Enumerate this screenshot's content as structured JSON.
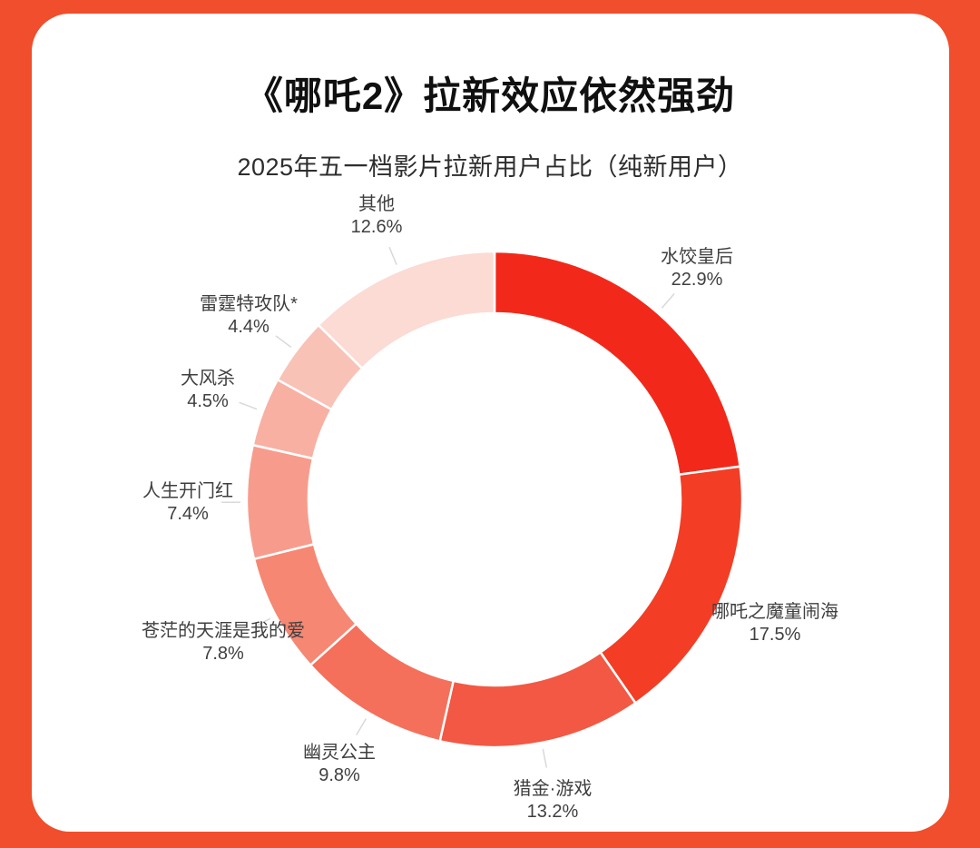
{
  "page": {
    "frame_color": "#F04E2C",
    "card_color": "#FFFFFF",
    "title_color": "#101010",
    "label_color": "#3F3F3F",
    "leader_tick_color": "#D9D9D9"
  },
  "chart_data": {
    "type": "pie",
    "subtype": "donut",
    "title": "《哪吒2》拉新效应依然强劲",
    "subtitle": "2025年五一档影片拉新用户占比（纯新用户）",
    "value_suffix": "%",
    "start_angle": "12-oclock",
    "direction": "clockwise",
    "inner_radius_ratio": 0.75,
    "legend_position": "none",
    "labels_show_percent": true,
    "segments": [
      {
        "label": "水饺皇后",
        "value": 22.9,
        "color": "#F2291A"
      },
      {
        "label": "哪吒之魔童闹海",
        "value": 17.5,
        "color": "#F33D25"
      },
      {
        "label": "猎金·游戏",
        "value": 13.2,
        "color": "#F25843"
      },
      {
        "label": "幽灵公主",
        "value": 9.8,
        "color": "#F4705B"
      },
      {
        "label": "苍茫的天涯是我的爱",
        "value": 7.8,
        "color": "#F58773"
      },
      {
        "label": "人生开门红",
        "value": 7.4,
        "color": "#F79C8C"
      },
      {
        "label": "大风杀",
        "value": 4.5,
        "color": "#F8B0A3"
      },
      {
        "label": "雷霆特攻队*",
        "value": 4.4,
        "color": "#F9C2B7"
      },
      {
        "label": "其他",
        "value": 12.6,
        "color": "#FBDBD4"
      }
    ]
  }
}
